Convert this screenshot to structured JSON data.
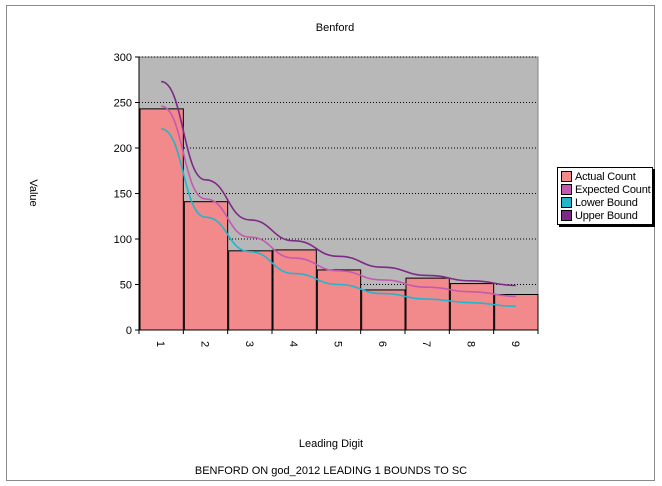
{
  "chart_data": {
    "type": "bar",
    "title": "Benford",
    "xlabel": "Leading Digit",
    "ylabel": "Value",
    "footer": "BENFORD ON god_2012 LEADING 1 BOUNDS TO SC",
    "categories": [
      "1",
      "2",
      "3",
      "4",
      "5",
      "6",
      "7",
      "8",
      "9"
    ],
    "ylim": [
      0,
      300
    ],
    "yticks": [
      "0",
      "50",
      "100",
      "150",
      "200",
      "250",
      "300"
    ],
    "grid": true,
    "legend_position": "right",
    "series": [
      {
        "name": "Actual Count",
        "kind": "bar",
        "color": "#f28a8c",
        "values": [
          243,
          141,
          87,
          88,
          66,
          44,
          57,
          51,
          39
        ]
      },
      {
        "name": "Expected Count",
        "kind": "line",
        "color": "#c45ab0",
        "values": [
          246,
          144,
          102,
          79,
          65,
          55,
          47,
          42,
          37
        ]
      },
      {
        "name": "Lower Bound",
        "kind": "line",
        "color": "#22b5cc",
        "values": [
          221,
          124,
          86,
          62,
          50,
          40,
          34,
          30,
          26
        ]
      },
      {
        "name": "Upper Bound",
        "kind": "line",
        "color": "#7d2a86",
        "values": [
          273,
          165,
          121,
          98,
          81,
          69,
          60,
          54,
          49
        ]
      }
    ],
    "plot_background": "#b8b8b8"
  }
}
